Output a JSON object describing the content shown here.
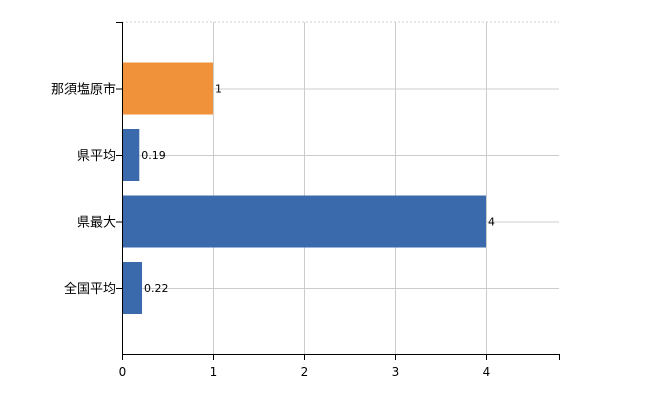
{
  "chart_data": {
    "type": "bar",
    "orientation": "horizontal",
    "categories": [
      "那須塩原市",
      "県平均",
      "県最大",
      "全国平均"
    ],
    "values": [
      1,
      0.19,
      4,
      0.22
    ],
    "data_labels": [
      "1",
      "0.19",
      "4",
      "0.22"
    ],
    "bar_colors": [
      "#f0923a",
      "#3a6aab",
      "#3a6aab",
      "#3a6aab"
    ],
    "xlim": [
      0,
      4.8
    ],
    "x_ticks": [
      0,
      1,
      2,
      3,
      4
    ],
    "x_tick_labels": [
      "0",
      "1",
      "2",
      "3",
      "4"
    ],
    "title": "",
    "xlabel": "",
    "ylabel": "",
    "grid": true,
    "legend": "none"
  }
}
